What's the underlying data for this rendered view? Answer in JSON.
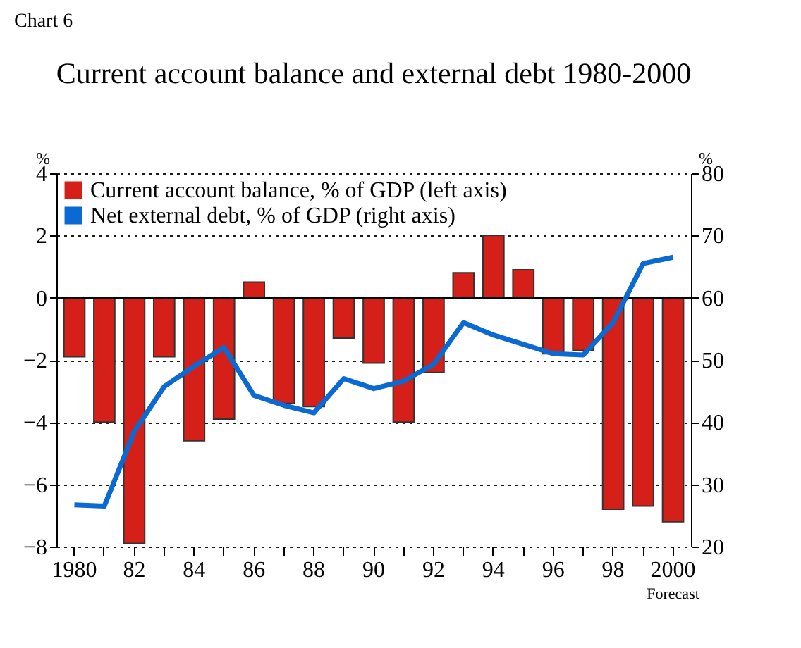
{
  "chart_data": {
    "type": "bar",
    "title": "Current account balance and external debt 1980-2000",
    "ylabel": "%",
    "y2label": "%",
    "annotations": [
      "Chart 6",
      "Forecast"
    ],
    "categories": [
      "1980",
      null,
      "82",
      null,
      "84",
      null,
      "86",
      null,
      "88",
      null,
      "90",
      null,
      "92",
      null,
      "94",
      null,
      "96",
      null,
      "98",
      null,
      "2000"
    ],
    "series": [
      {
        "name": "Current account balance, % of GDP (left axis)",
        "color": "#d42018",
        "values": [
          -1.9,
          -4.0,
          -7.9,
          -1.9,
          -4.6,
          -3.9,
          0.5,
          -3.4,
          -3.5,
          -1.3,
          -2.1,
          -4.0,
          -2.4,
          0.8,
          2.0,
          0.9,
          -1.8,
          -1.7,
          -6.8,
          -6.7,
          -7.2
        ]
      },
      {
        "name": "Net external debt, % of GDP (right axis)",
        "type": "line",
        "axis": "y2",
        "color": "#0a6ad2",
        "values": [
          26.7,
          26.5,
          38.5,
          45.7,
          49.0,
          52.0,
          44.3,
          42.7,
          41.5,
          47.0,
          45.4,
          46.6,
          49.3,
          56.0,
          54.0,
          52.5,
          51.0,
          50.8,
          56.0,
          65.5,
          66.5
        ]
      }
    ],
    "ylim": [
      -8,
      4
    ],
    "yticks": [
      -8,
      -6,
      -4,
      -2,
      0,
      2,
      4
    ],
    "y2lim": [
      20,
      80
    ],
    "y2ticks": [
      20,
      30,
      40,
      50,
      60,
      70,
      80
    ],
    "ref_lines": [
      {
        "axis": "y",
        "value": 0,
        "color": "#000000",
        "line_style": "solid"
      }
    ],
    "grid": "y",
    "legend": "top left",
    "line_style": "solid",
    "marker": "none"
  }
}
